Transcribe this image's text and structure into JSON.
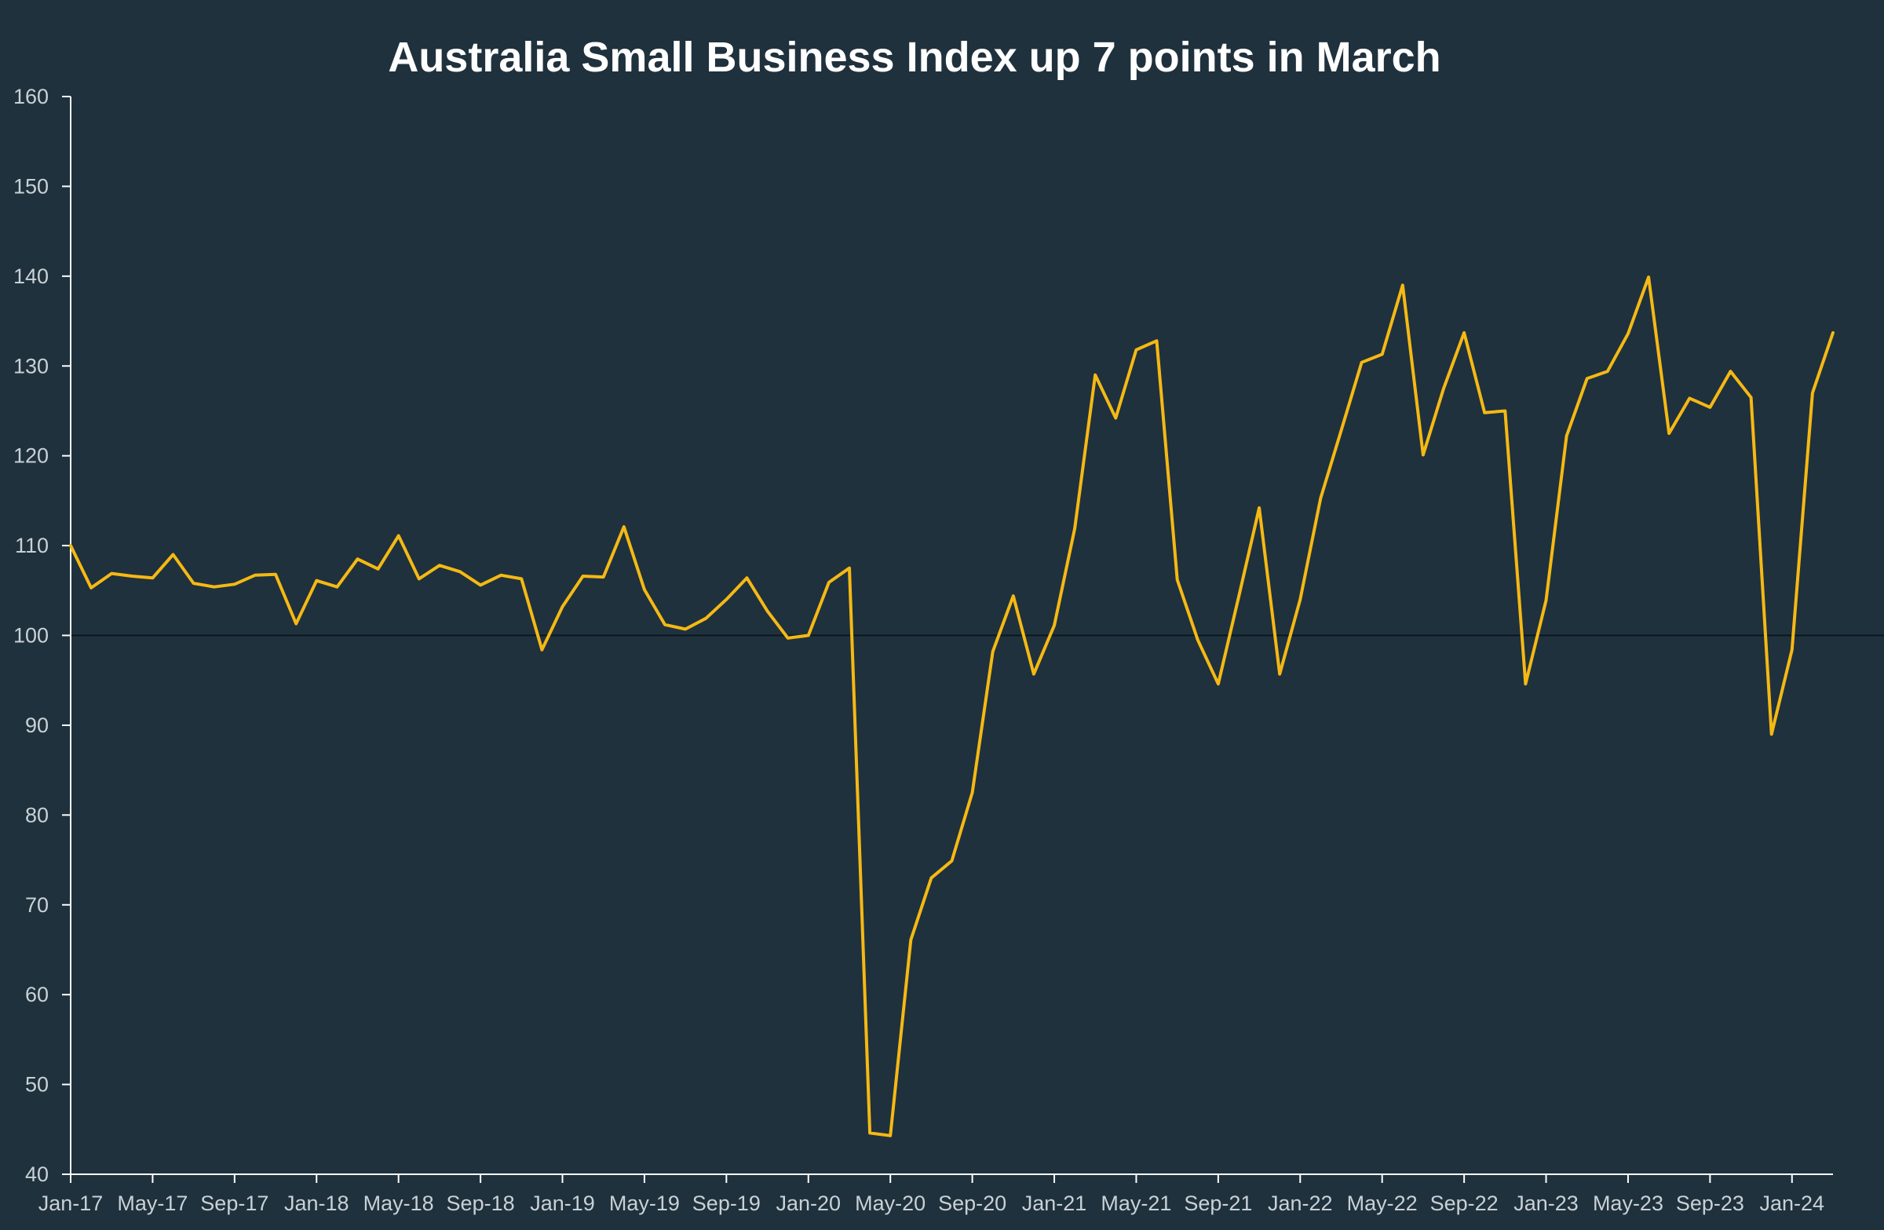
{
  "chart_data": {
    "type": "line",
    "title": "Australia Small Business Index up 7 points in March",
    "xlabel": "",
    "ylabel": "",
    "ylim": [
      40,
      160
    ],
    "yticks": [
      40,
      50,
      60,
      70,
      80,
      90,
      100,
      110,
      120,
      130,
      140,
      150,
      160
    ],
    "reference_line": 100,
    "grid": false,
    "x_tick_labels": [
      "Jan-17",
      "May-17",
      "Sep-17",
      "Jan-18",
      "May-18",
      "Sep-18",
      "Jan-19",
      "May-19",
      "Sep-19",
      "Jan-20",
      "May-20",
      "Sep-20",
      "Jan-21",
      "May-21",
      "Sep-21",
      "Jan-22",
      "May-22",
      "Sep-22",
      "Jan-23",
      "May-23",
      "Sep-23",
      "Jan-24"
    ],
    "x_start": "Jan-17",
    "x_end": "Mar-24",
    "colors": {
      "line": "#f5b914",
      "reference": "#0c161d",
      "axis": "#ffffff"
    },
    "series": [
      {
        "values": [
          110,
          105.3,
          106.9,
          106.6,
          106.4,
          109,
          105.8,
          105.4,
          105.7,
          106.7,
          106.8,
          101.3,
          106.1,
          105.4,
          108.5,
          107.4,
          111.1,
          106.3,
          107.8,
          107.1,
          105.6,
          106.7,
          106.3,
          98.4,
          103.2,
          106.6,
          106.5,
          112.1,
          105.1,
          101.2,
          100.7,
          101.9,
          104,
          106.4,
          102.7,
          99.7,
          100,
          105.9,
          107.5,
          44.6,
          44.3,
          66.1,
          73,
          74.9,
          82.5,
          98.2,
          104.4,
          95.7,
          101.1,
          111.9,
          129,
          124.2,
          131.8,
          132.8,
          106.2,
          99.5,
          94.6,
          104.3,
          114.2,
          95.7,
          104,
          115.3,
          122.8,
          130.4,
          131.3,
          139,
          120.1,
          127.5,
          133.7,
          124.8,
          125,
          94.6,
          103.9,
          122.2,
          128.6,
          129.4,
          133.6,
          139.9,
          122.5,
          126.4,
          125.4,
          129.4,
          126.5,
          89,
          98.4,
          127,
          133.7
        ]
      }
    ]
  }
}
